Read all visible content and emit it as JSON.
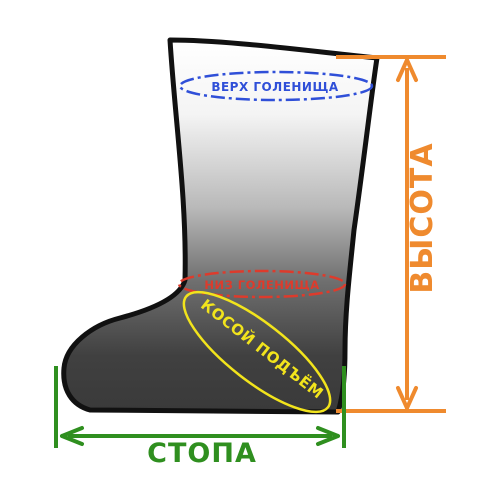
{
  "labels": {
    "top": "ВЕРХ ГОЛЕНИЩА",
    "bottom": "НИЗ ГОЛЕНИЩА",
    "instep": "КОСОЙ ПОДЪЁМ",
    "height": "ВЫСОТА",
    "foot": "СТОПА"
  },
  "colors": {
    "top": "#2f4fd8",
    "bottom": "#dd3b2c",
    "instep": "#f2e41c",
    "height": "#ef8a2e",
    "foot": "#2f8f1f",
    "outline": "#111111"
  }
}
